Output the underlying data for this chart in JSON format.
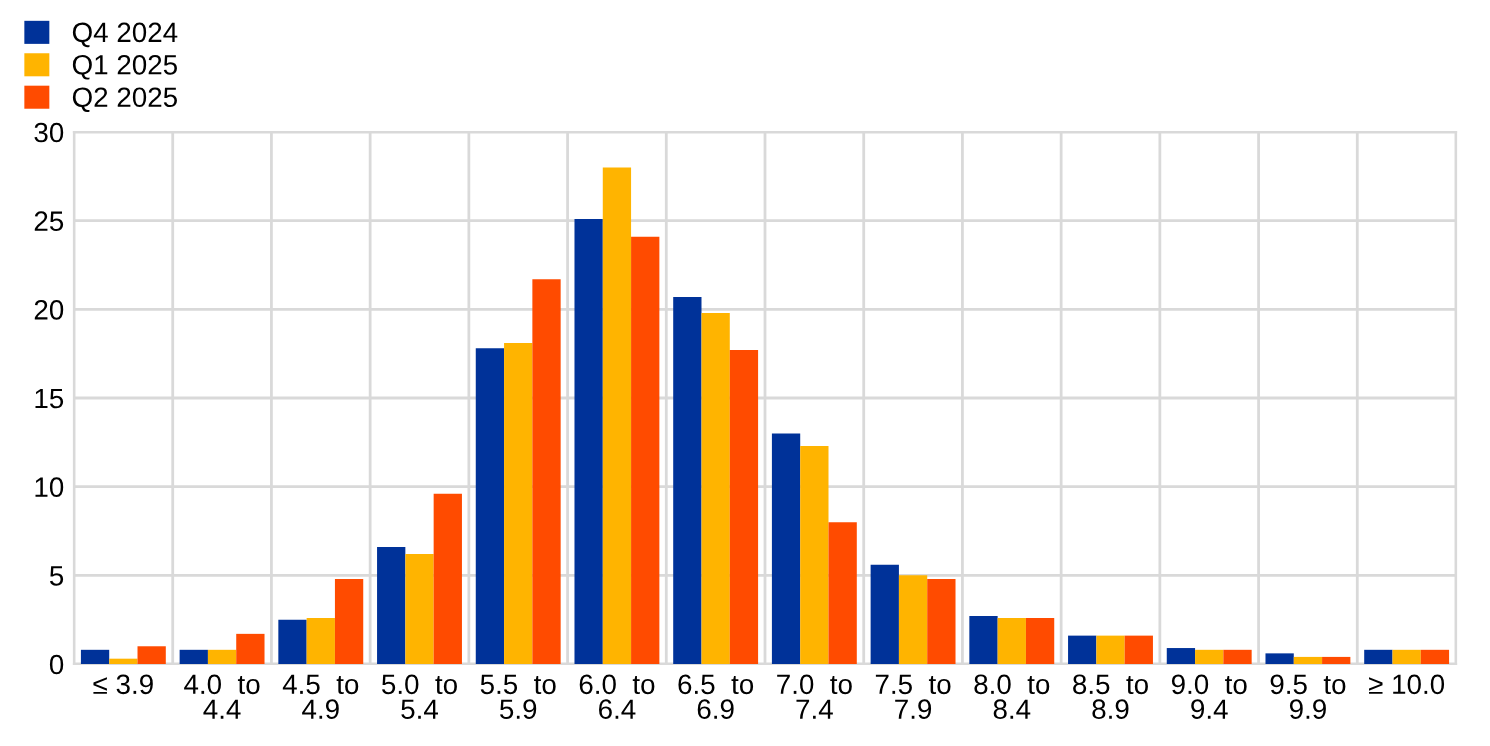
{
  "chart_data": {
    "type": "bar",
    "categories": [
      "≤ 3.9",
      "4.0  to\n4.4",
      "4.5  to\n4.9",
      "5.0  to\n5.4",
      "5.5  to\n5.9",
      "6.0  to\n6.4",
      "6.5  to\n6.9",
      "7.0  to\n7.4",
      "7.5  to\n7.9",
      "8.0  to\n8.4",
      "8.5  to\n8.9",
      "9.0  to\n9.4",
      "9.5  to\n9.9",
      "≥ 10.0"
    ],
    "series": [
      {
        "name": "Q4 2024",
        "color": "#003299",
        "values": [
          0.8,
          0.8,
          2.5,
          6.6,
          17.8,
          25.1,
          20.7,
          13.0,
          5.6,
          2.7,
          1.6,
          0.9,
          0.6,
          0.8
        ]
      },
      {
        "name": "Q1 2025",
        "color": "#ffb400",
        "values": [
          0.3,
          0.8,
          2.6,
          6.2,
          18.1,
          28.0,
          19.8,
          12.3,
          5.0,
          2.6,
          1.6,
          0.8,
          0.4,
          0.8
        ]
      },
      {
        "name": "Q2 2025",
        "color": "#ff4b00",
        "values": [
          1.0,
          1.7,
          4.8,
          9.6,
          21.7,
          24.1,
          17.7,
          8.0,
          4.8,
          2.6,
          1.6,
          0.8,
          0.4,
          0.8
        ]
      }
    ],
    "ylim": [
      0,
      30
    ],
    "yticks": [
      0,
      5,
      10,
      15,
      20,
      25,
      30
    ],
    "grid": true,
    "legend": "top left"
  }
}
